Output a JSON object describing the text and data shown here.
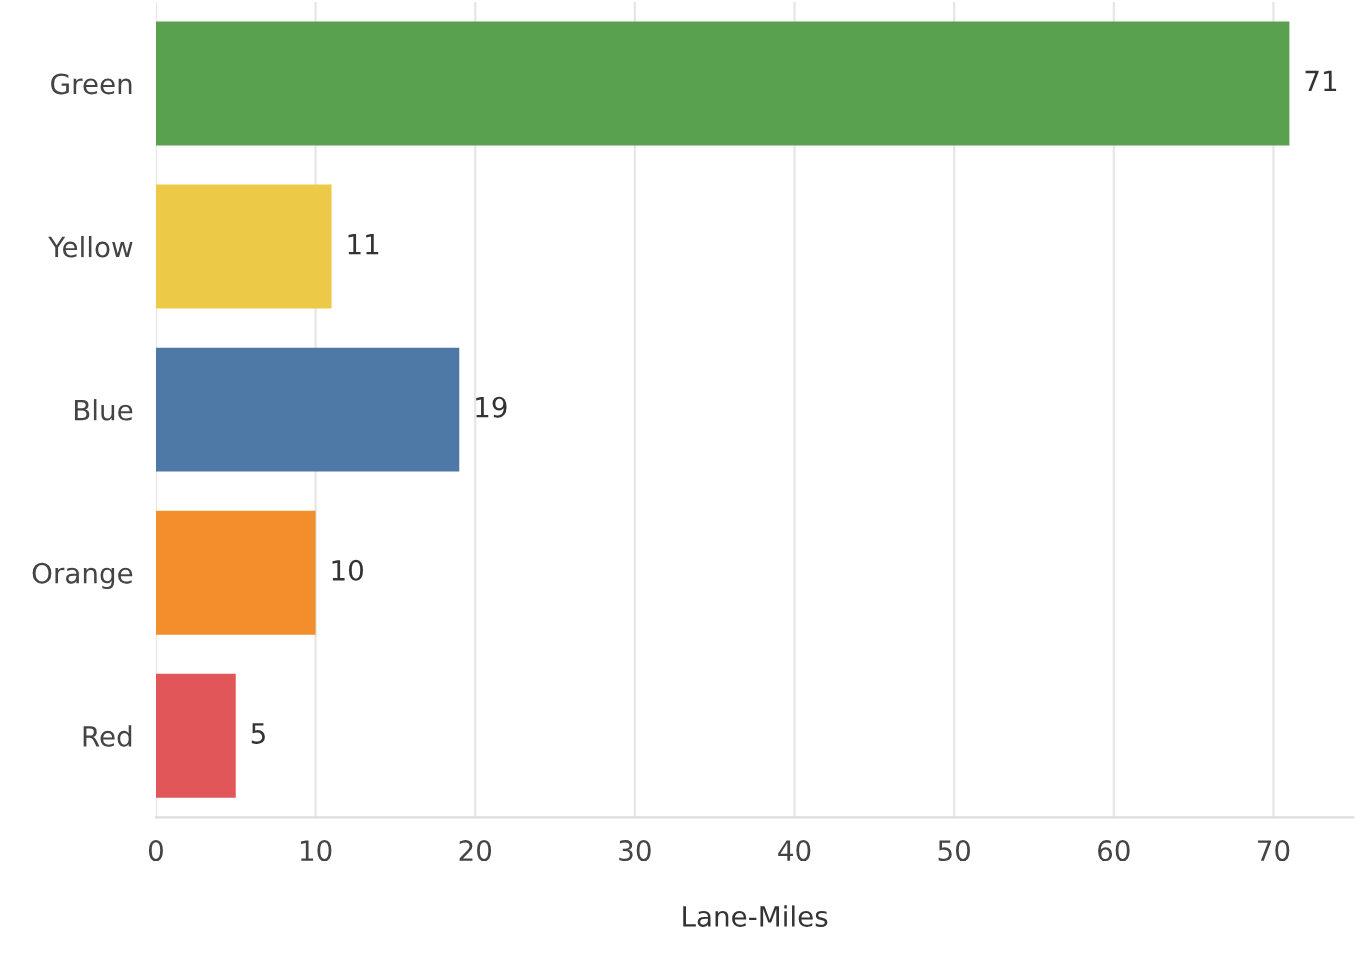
{
  "chart_data": {
    "type": "bar",
    "orientation": "horizontal",
    "xlabel": "Lane-Miles",
    "categories": [
      "Green",
      "Yellow",
      "Blue",
      "Orange",
      "Red"
    ],
    "values": [
      71,
      11,
      19,
      10,
      5
    ],
    "colors": [
      "#59a14f",
      "#edc948",
      "#4e79a7",
      "#f28e2b",
      "#e15759"
    ],
    "xlim": [
      0,
      75
    ],
    "xticks": [
      0,
      10,
      20,
      30,
      40,
      50,
      60,
      70
    ],
    "grid": "x",
    "data_labels": true
  }
}
